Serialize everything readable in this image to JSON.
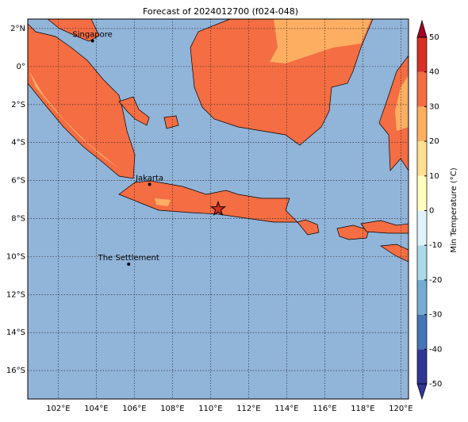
{
  "map": {
    "title": "Forecast of 2024012700 (f024-048)",
    "xlim": [
      100.4,
      120.4
    ],
    "ylim": [
      -17.5,
      2.5
    ],
    "xticks": [
      {
        "value": 102,
        "label": "102°E"
      },
      {
        "value": 104,
        "label": "104°E"
      },
      {
        "value": 106,
        "label": "106°E"
      },
      {
        "value": 108,
        "label": "108°E"
      },
      {
        "value": 110,
        "label": "110°E"
      },
      {
        "value": 112,
        "label": "112°E"
      },
      {
        "value": 114,
        "label": "114°E"
      },
      {
        "value": 116,
        "label": "116°E"
      },
      {
        "value": 118,
        "label": "118°E"
      },
      {
        "value": 120,
        "label": "120°E"
      }
    ],
    "yticks": [
      {
        "value": 2,
        "label": "2°N"
      },
      {
        "value": 0,
        "label": "0°"
      },
      {
        "value": -2,
        "label": "2°S"
      },
      {
        "value": -4,
        "label": "4°S"
      },
      {
        "value": -6,
        "label": "6°S"
      },
      {
        "value": -8,
        "label": "8°S"
      },
      {
        "value": -10,
        "label": "10°S"
      },
      {
        "value": -12,
        "label": "12°S"
      },
      {
        "value": -14,
        "label": "14°S"
      },
      {
        "value": -16,
        "label": "16°S"
      }
    ],
    "grid": true,
    "cities": [
      {
        "name": "Singapore",
        "lon": 103.8,
        "lat": 1.35
      },
      {
        "name": "Jakarta",
        "lon": 106.8,
        "lat": -6.2
      },
      {
        "name": "The Settlement",
        "lon": 105.7,
        "lat": -10.4
      }
    ],
    "star": {
      "lon": 110.4,
      "lat": -7.5,
      "color": "#d7301f"
    },
    "colorbar": {
      "label": "Min Temperature (°C)",
      "lim": [
        -50,
        50
      ],
      "ticks": [
        -50,
        -40,
        -30,
        -20,
        -10,
        0,
        10,
        20,
        30,
        40,
        50
      ],
      "colors": [
        "#313695",
        "#4575b4",
        "#74add1",
        "#abd9e9",
        "#e0f3f8",
        "#ffffbf",
        "#fee090",
        "#fdae61",
        "#f46d43",
        "#d73027",
        "#a50026"
      ]
    }
  }
}
